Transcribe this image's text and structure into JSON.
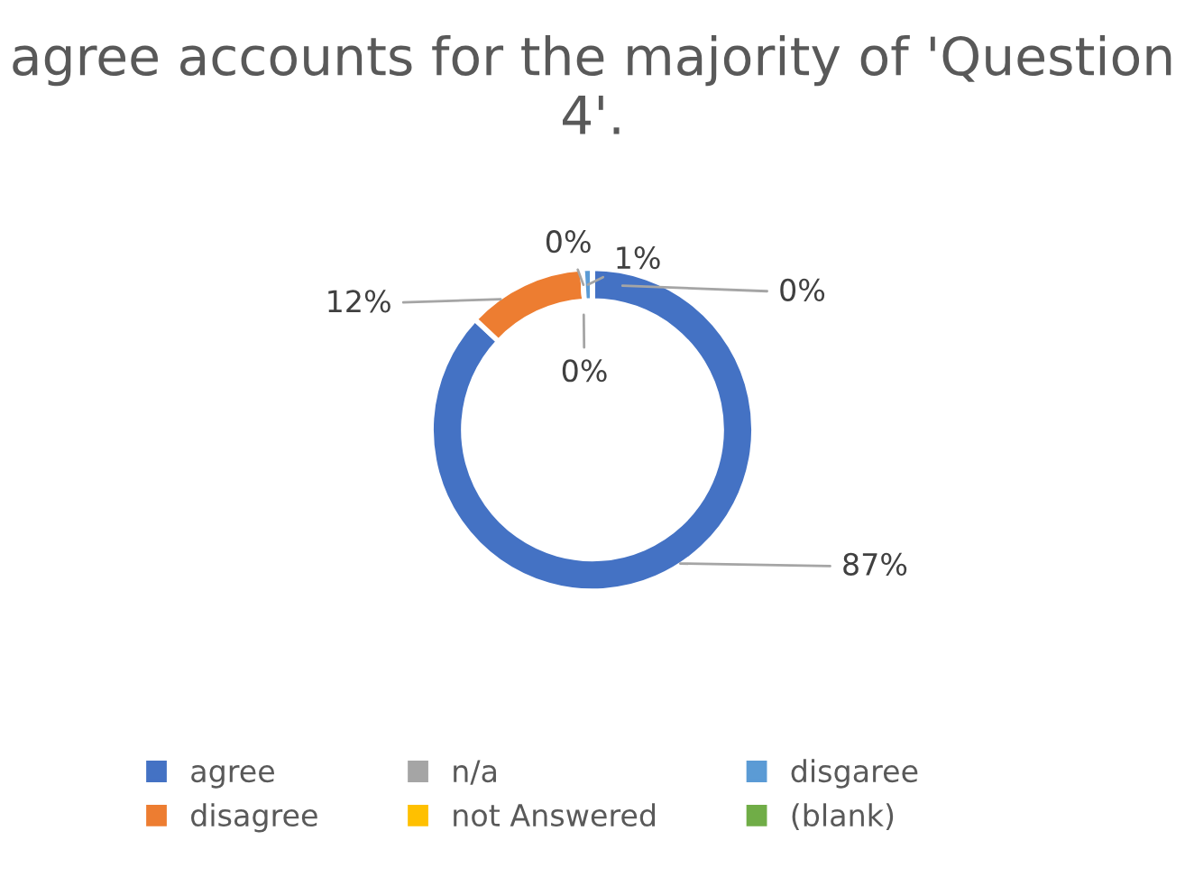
{
  "chart_data": {
    "type": "donut",
    "title": "agree accounts for the majority of 'Question 4'.",
    "categories": [
      "agree",
      "disagree",
      "n/a",
      "not Answered",
      "disgaree",
      "(blank)"
    ],
    "values": [
      87,
      12,
      0,
      0,
      1,
      0
    ],
    "colors": [
      "#4472c4",
      "#ed7d31",
      "#a5a5a5",
      "#ffc000",
      "#5b9bd5",
      "#70ad47"
    ],
    "value_labels": [
      "87%",
      "12%",
      "0%",
      "0%",
      "1%",
      "0%"
    ],
    "legend": "bottom"
  }
}
